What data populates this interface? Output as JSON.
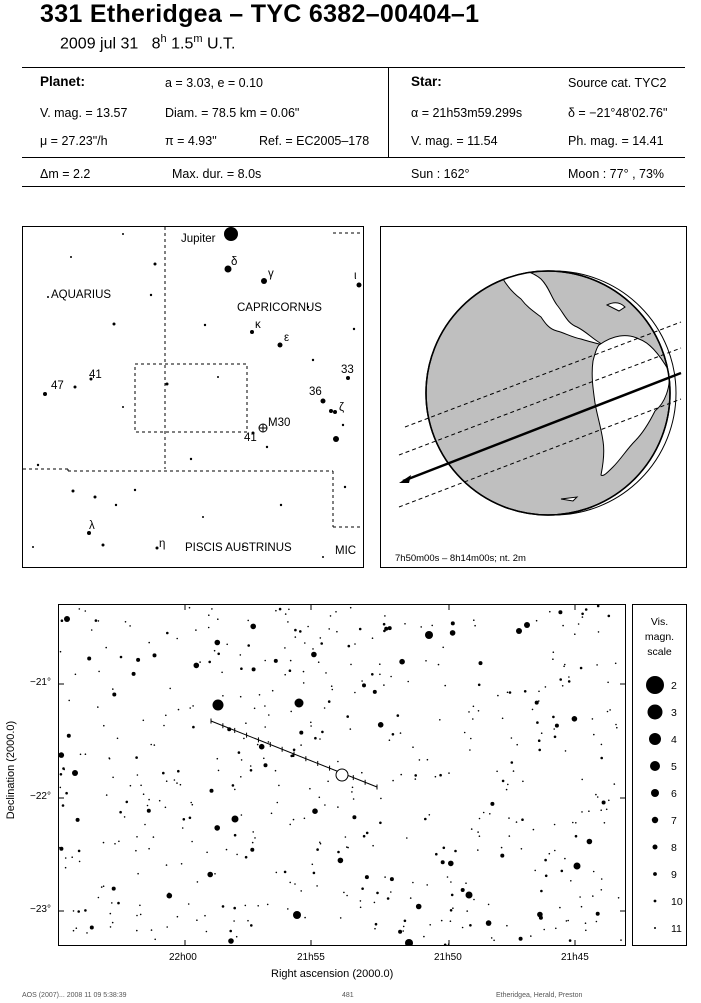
{
  "header": {
    "title": "331 Etheridgea  –  TYC 6382–00404–1",
    "date": "2009 jul 31",
    "time_h": "8",
    "time_hsup": "h",
    "time_m": "1.5",
    "time_msup": "m",
    "time_ut": "U.T."
  },
  "planet": {
    "heading": "Planet:",
    "orbit": "a = 3.03, e = 0.10",
    "vmag": "V. mag. = 13.57",
    "diam": "Diam. = 78.5 km = 0.06\"",
    "mu": "μ = 27.23\"/h",
    "pi": "π = 4.93\"",
    "ref": "Ref. = EC2005–178"
  },
  "star": {
    "heading": "Star:",
    "source": "Source cat.  TYC2",
    "ra": "α = 21h53m59.299s",
    "dec": "δ = −21°48'02.76\"",
    "vmag": "V. mag. = 11.54",
    "phmag": "Ph. mag. = 14.41"
  },
  "event": {
    "dm": "Δm = 2.2",
    "maxdur": "Max. dur. = 8.0s",
    "sun": "Sun : 162°",
    "moon": "Moon :  77° , 73%"
  },
  "skymap": {
    "labels": {
      "jupiter": "Jupiter",
      "aquarius": "AQUARIUS",
      "capricornus": "CAPRICORNUS",
      "piscis": "PISCIS AUSTRINUS",
      "mic": "MIC",
      "m30": "M30",
      "n41a": "41",
      "n41b": "41",
      "n47": "47",
      "n36": "36",
      "n33": "33",
      "delta": "δ",
      "gamma": "γ",
      "iota": "ι",
      "kappa": "κ",
      "epsilon": "ε",
      "zeta": "ζ",
      "lambda": "λ",
      "eta": "η"
    }
  },
  "globe": {
    "caption": "7h50m00s – 8h14m00s;  nt.  2m"
  },
  "finder": {
    "ylabel": "Declination (2000.0)",
    "xlabel": "Right ascension (2000.0)",
    "yticks": [
      "−21°",
      "−22°",
      "−23°"
    ],
    "xticks": [
      "22h00",
      "21h55",
      "21h50",
      "21h45"
    ],
    "footer_left": "AOS (2007)...  2008 11 09  5:38:39",
    "footer_mid": "481",
    "footer_right": "Etheridgea, Herald, Preston"
  },
  "scale": {
    "title1": "Vis.",
    "title2": "magn.",
    "title3": "scale",
    "mags": [
      "2",
      "3",
      "4",
      "5",
      "6",
      "7",
      "8",
      "9",
      "10",
      "11"
    ]
  }
}
